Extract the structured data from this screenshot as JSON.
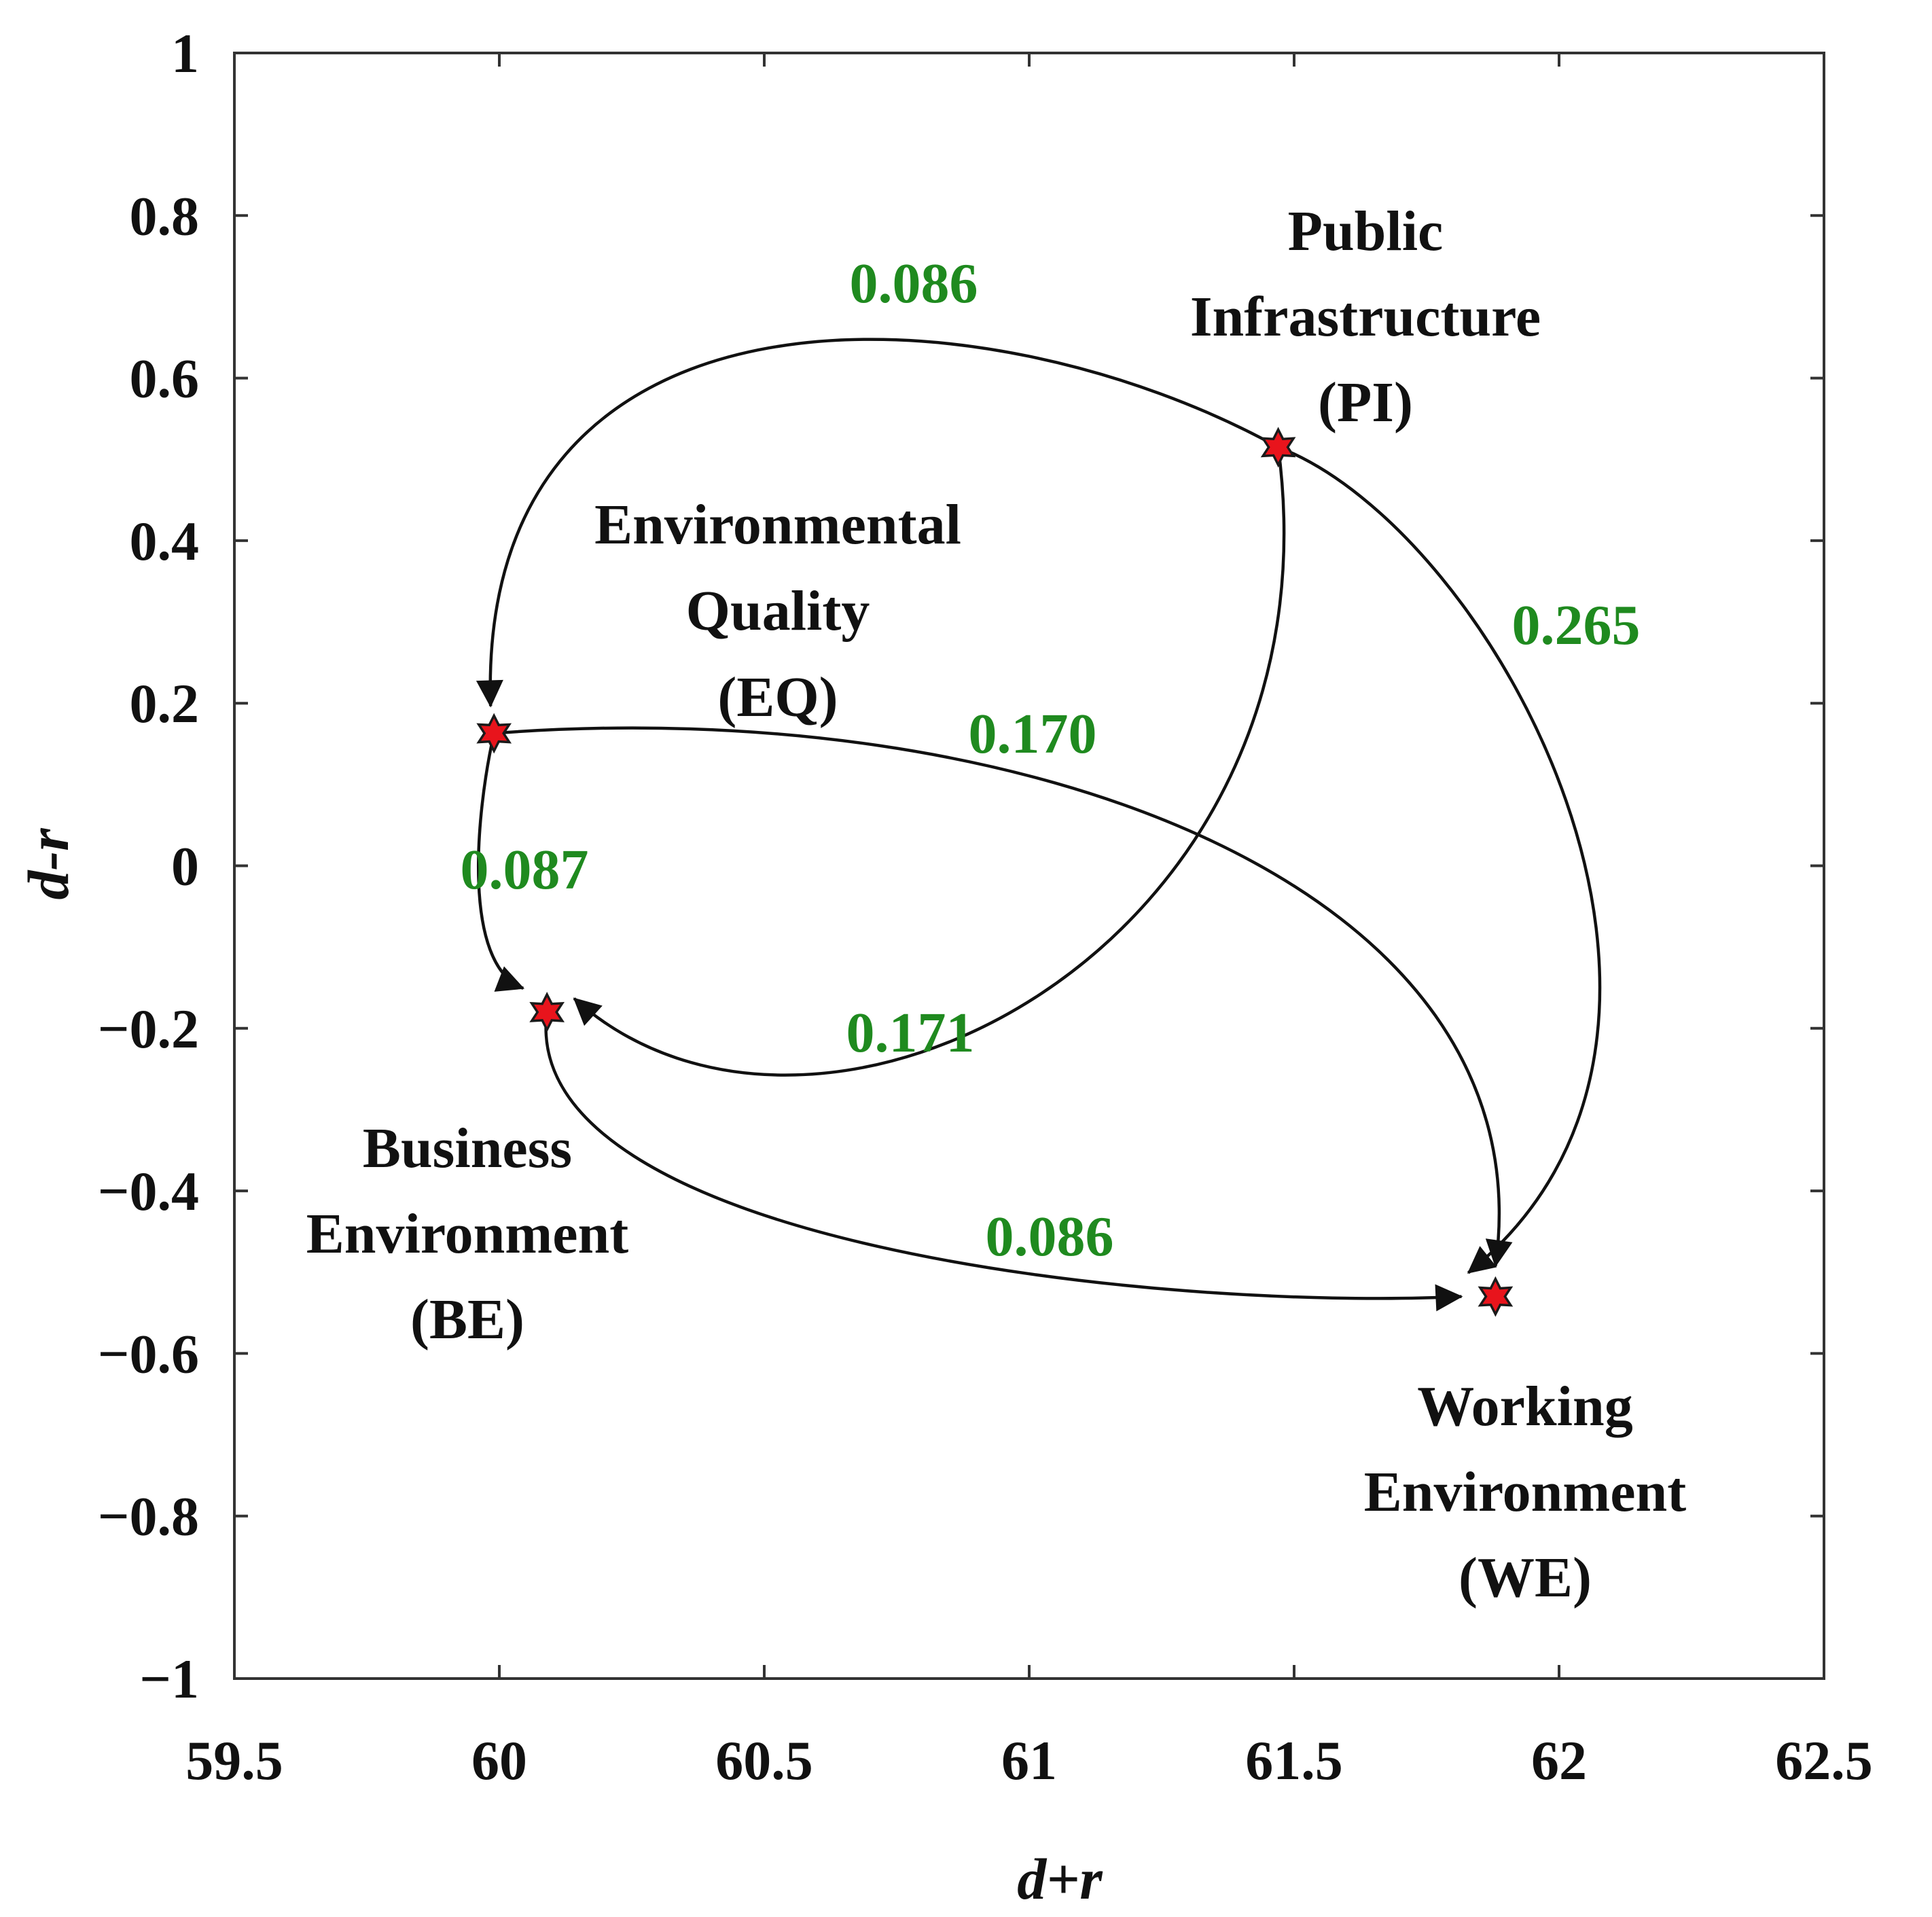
{
  "chart_data": {
    "type": "scatter",
    "title": "",
    "xlabel": "d+r",
    "ylabel": "d-r",
    "xlim": [
      59.5,
      62.5
    ],
    "ylim": [
      -1,
      1
    ],
    "xticks": [
      59.5,
      60,
      60.5,
      61,
      61.5,
      62,
      62.5
    ],
    "xtick_labels": [
      "59.5",
      "60",
      "60.5",
      "61",
      "61.5",
      "62",
      "62.5"
    ],
    "yticks": [
      1,
      0.8,
      0.6,
      0.4,
      0.2,
      0,
      -0.2,
      -0.4,
      -0.6,
      -0.8,
      -1
    ],
    "ytick_labels": [
      "1",
      "0.8",
      "0.6",
      "0.4",
      "0.2",
      "0",
      "−0.2",
      "−0.4",
      "−0.6",
      "−0.8",
      "−1"
    ],
    "grid": false,
    "marker_color": "#e8141c",
    "edge_label_color": "#1f8a1f",
    "nodes": [
      {
        "id": "PI",
        "x": 61.47,
        "y": 0.515,
        "label": [
          "Public",
          "Infrastructure",
          "(PI)"
        ]
      },
      {
        "id": "EQ",
        "x": 59.99,
        "y": 0.163,
        "label": [
          "Environmental",
          "Quality",
          "(EQ)"
        ]
      },
      {
        "id": "BE",
        "x": 60.09,
        "y": -0.18,
        "label": [
          "Business",
          "Environment",
          "(BE)"
        ]
      },
      {
        "id": "WE",
        "x": 61.88,
        "y": -0.53,
        "label": [
          "Working",
          "Environment",
          "(WE)"
        ]
      }
    ],
    "edges": [
      {
        "from": "PI",
        "to": "EQ",
        "weight": "0.086"
      },
      {
        "from": "PI",
        "to": "WE",
        "weight": "0.265"
      },
      {
        "from": "PI",
        "to": "BE",
        "weight": "0.171"
      },
      {
        "from": "EQ",
        "to": "WE",
        "weight": "0.170"
      },
      {
        "from": "EQ",
        "to": "BE",
        "weight": "0.087"
      },
      {
        "from": "BE",
        "to": "WE",
        "weight": "0.086"
      }
    ]
  }
}
